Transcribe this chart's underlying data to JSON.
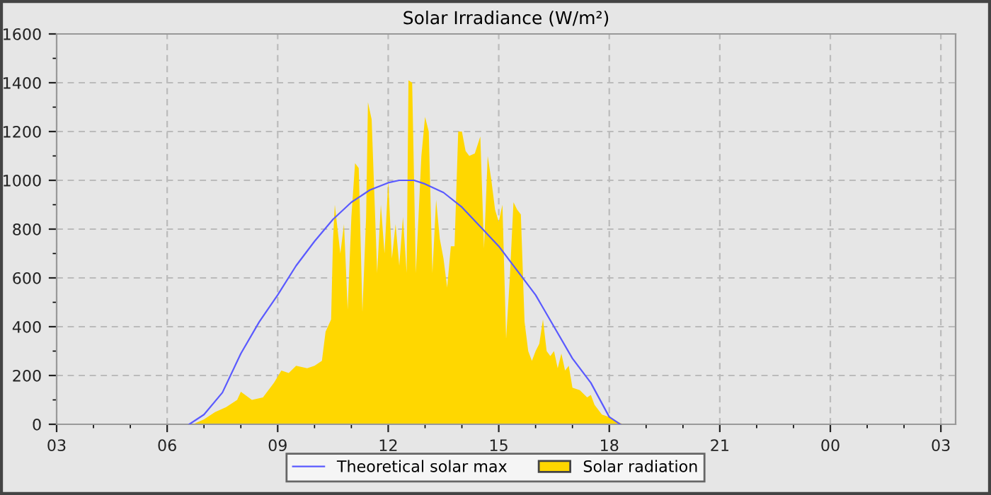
{
  "chart_data": {
    "type": "area",
    "title": "Solar Irradiance (W/m²)",
    "xlim": [
      3,
      27.4
    ],
    "ylim": [
      0,
      1600
    ],
    "xticks": [
      {
        "value": 3,
        "label": "03"
      },
      {
        "value": 6,
        "label": "06"
      },
      {
        "value": 9,
        "label": "09"
      },
      {
        "value": 12,
        "label": "12"
      },
      {
        "value": 15,
        "label": "15"
      },
      {
        "value": 18,
        "label": "18"
      },
      {
        "value": 21,
        "label": "21"
      },
      {
        "value": 24,
        "label": "00"
      },
      {
        "value": 27,
        "label": "03"
      }
    ],
    "yticks": [
      0,
      200,
      400,
      600,
      800,
      1000,
      1200,
      1400,
      1600
    ],
    "grid": true,
    "legend": "bottom",
    "series": [
      {
        "name": "Theoretical solar max",
        "type": "line",
        "color": "#5a5aff",
        "x": [
          6.6,
          7,
          7.5,
          8,
          8.5,
          9,
          9.5,
          10,
          10.5,
          11,
          11.5,
          12,
          12.3,
          12.7,
          13,
          13.5,
          14,
          14.5,
          15,
          15.5,
          16,
          16.5,
          17,
          17.5,
          18,
          18.3
        ],
        "values": [
          0,
          40,
          130,
          290,
          420,
          530,
          650,
          750,
          840,
          910,
          960,
          990,
          1000,
          1000,
          985,
          950,
          890,
          810,
          730,
          630,
          530,
          400,
          270,
          170,
          30,
          0
        ]
      },
      {
        "name": "Solar radiation",
        "color": "#ffd700",
        "x": [
          6.7,
          7.0,
          7.3,
          7.6,
          7.9,
          8.0,
          8.3,
          8.6,
          8.9,
          9.1,
          9.3,
          9.5,
          9.8,
          10.0,
          10.2,
          10.3,
          10.45,
          10.5,
          10.55,
          10.7,
          10.8,
          10.9,
          11.0,
          11.1,
          11.2,
          11.3,
          11.4,
          11.45,
          11.55,
          11.7,
          11.8,
          11.9,
          12.0,
          12.1,
          12.2,
          12.3,
          12.4,
          12.5,
          12.55,
          12.65,
          12.75,
          12.9,
          13.0,
          13.1,
          13.2,
          13.3,
          13.4,
          13.5,
          13.6,
          13.7,
          13.8,
          13.9,
          14.0,
          14.1,
          14.2,
          14.35,
          14.5,
          14.6,
          14.7,
          14.8,
          14.9,
          15.0,
          15.1,
          15.2,
          15.3,
          15.4,
          15.5,
          15.6,
          15.7,
          15.8,
          15.9,
          16.0,
          16.1,
          16.2,
          16.3,
          16.4,
          16.5,
          16.6,
          16.7,
          16.8,
          16.9,
          17.0,
          17.2,
          17.4,
          17.5,
          17.6,
          17.8,
          18.0,
          18.3,
          18.4
        ],
        "values": [
          0,
          20,
          50,
          70,
          100,
          133,
          100,
          110,
          170,
          220,
          210,
          240,
          230,
          240,
          260,
          380,
          430,
          750,
          900,
          700,
          820,
          470,
          850,
          1070,
          1050,
          460,
          850,
          1320,
          1250,
          620,
          900,
          700,
          1000,
          680,
          820,
          650,
          850,
          620,
          1410,
          1400,
          620,
          1100,
          1260,
          1200,
          620,
          920,
          760,
          680,
          560,
          730,
          730,
          1200,
          1200,
          1120,
          1100,
          1110,
          1180,
          720,
          1100,
          1000,
          880,
          830,
          900,
          350,
          600,
          910,
          880,
          860,
          420,
          300,
          260,
          300,
          330,
          430,
          300,
          280,
          300,
          230,
          290,
          220,
          240,
          150,
          140,
          110,
          120,
          80,
          40,
          30,
          5,
          0
        ]
      }
    ]
  }
}
